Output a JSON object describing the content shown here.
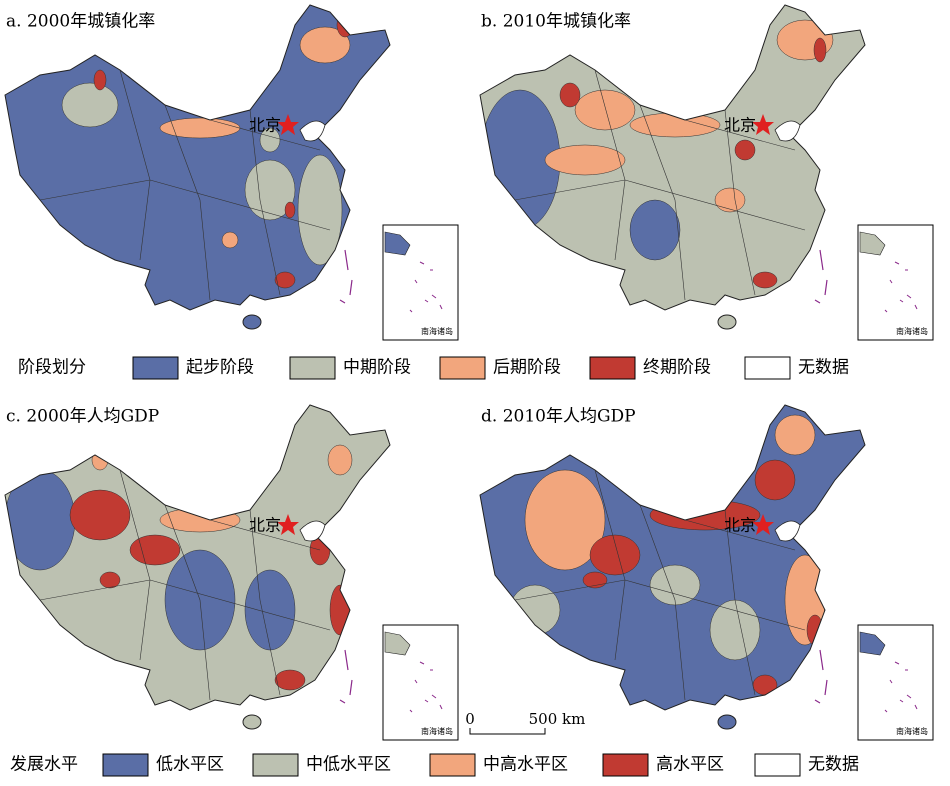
{
  "panels": [
    {
      "title": "a. 2000年城镇化率",
      "capital": "北京",
      "inset_label": "南海诸岛"
    },
    {
      "title": "b. 2010年城镇化率",
      "capital": "北京",
      "inset_label": "南海诸岛"
    },
    {
      "title": "c. 2000年人均GDP",
      "capital": "北京",
      "inset_label": "南海诸岛"
    },
    {
      "title": "d. 2010年人均GDP",
      "capital": "北京",
      "inset_label": "南海诸岛"
    }
  ],
  "legends": [
    {
      "title": "阶段划分",
      "items": [
        {
          "label": "起步阶段",
          "color": "#5a6ea6"
        },
        {
          "label": "中期阶段",
          "color": "#bcc1b1"
        },
        {
          "label": "后期阶段",
          "color": "#f2a67d"
        },
        {
          "label": "终期阶段",
          "color": "#c13a32"
        },
        {
          "label": "无数据",
          "color": "#ffffff"
        }
      ]
    },
    {
      "title": "发展水平",
      "items": [
        {
          "label": "低水平区",
          "color": "#5a6ea6"
        },
        {
          "label": "中低水平区",
          "color": "#bcc1b1"
        },
        {
          "label": "中高水平区",
          "color": "#f2a67d"
        },
        {
          "label": "高水平区",
          "color": "#c13a32"
        },
        {
          "label": "无数据",
          "color": "#ffffff"
        }
      ]
    }
  ],
  "scale_bar": {
    "start": "0",
    "end": "500 km"
  }
}
